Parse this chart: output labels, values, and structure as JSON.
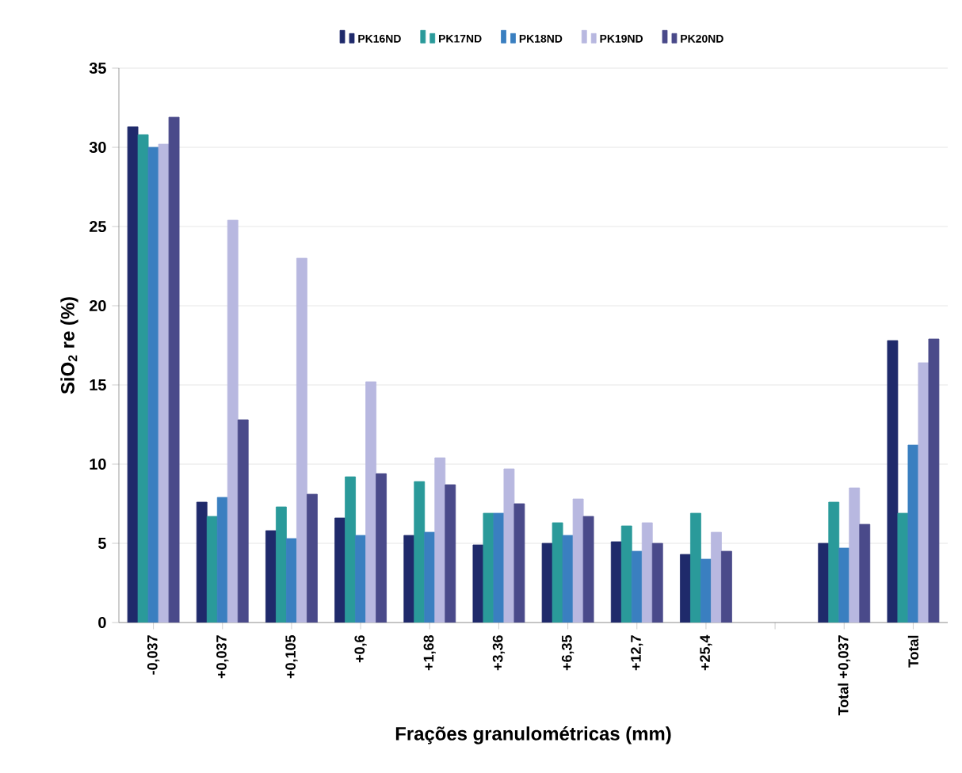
{
  "chart_data": {
    "type": "bar",
    "xlabel": "Frações granulométricas (mm)",
    "ylabel": "SiO$_{2}$ re (%)",
    "categories": [
      "-0,037",
      "+0,037",
      "+0,105",
      "+0,6",
      "+1,68",
      "+3,36",
      "+6,35",
      "+12,7",
      "+25,4",
      null,
      "Total +0,037",
      "Total"
    ],
    "series": [
      {
        "name": "PK16ND",
        "color": "#1f2a6b",
        "values": [
          31.3,
          7.6,
          5.8,
          6.6,
          5.5,
          4.9,
          5.0,
          5.1,
          4.3,
          null,
          5.0,
          17.8
        ]
      },
      {
        "name": "PK17ND",
        "color": "#2a9a9a",
        "values": [
          30.8,
          6.7,
          7.3,
          9.2,
          8.9,
          6.9,
          6.3,
          6.1,
          6.9,
          null,
          7.6,
          6.9
        ]
      },
      {
        "name": "PK18ND",
        "color": "#3a7fc0",
        "values": [
          30.0,
          7.9,
          5.3,
          5.5,
          5.7,
          6.9,
          5.5,
          4.5,
          4.0,
          null,
          4.7,
          11.2
        ]
      },
      {
        "name": "PK19ND",
        "color": "#b8b8e0",
        "values": [
          30.2,
          25.4,
          23.0,
          15.2,
          10.4,
          9.7,
          7.8,
          6.3,
          5.7,
          null,
          8.5,
          16.4
        ]
      },
      {
        "name": "PK20ND",
        "color": "#4a4a8a",
        "values": [
          31.9,
          12.8,
          8.1,
          9.4,
          8.7,
          7.5,
          6.7,
          5.0,
          4.5,
          null,
          6.2,
          17.9
        ]
      }
    ],
    "ylim": [
      0,
      35
    ],
    "yticks": [
      0,
      5,
      10,
      15,
      20,
      25,
      30,
      35
    ],
    "grid": "y",
    "legend": "top"
  }
}
